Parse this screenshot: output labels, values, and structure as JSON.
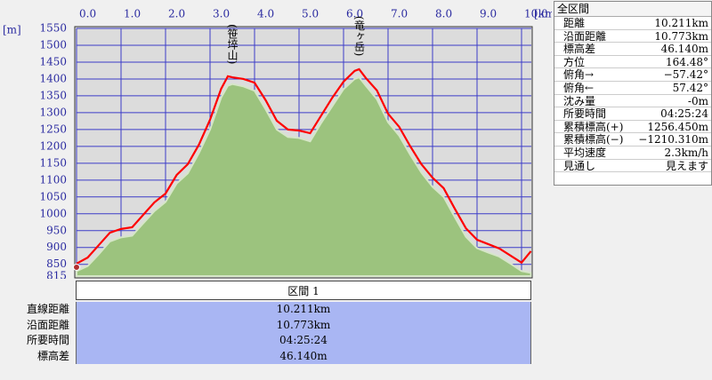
{
  "chart_data": {
    "type": "line",
    "x_unit": "[km]",
    "y_unit": "[m]",
    "annotations": [
      {
        "x": 3.5,
        "y": 1405,
        "text": "(笹埣山)"
      },
      {
        "x": 6.35,
        "y": 1429,
        "text": "(竜ヶ岳)"
      }
    ],
    "x": [
      0,
      0.25,
      0.5,
      0.75,
      1.0,
      1.25,
      1.5,
      1.75,
      2.0,
      2.25,
      2.5,
      2.75,
      3.0,
      3.25,
      3.4,
      3.5,
      3.75,
      4.0,
      4.25,
      4.5,
      4.75,
      5.0,
      5.25,
      5.5,
      5.75,
      6.0,
      6.25,
      6.35,
      6.5,
      6.75,
      7.0,
      7.25,
      7.5,
      7.75,
      8.0,
      8.25,
      8.5,
      8.75,
      9.0,
      9.25,
      9.5,
      9.75,
      10.0,
      10.211
    ],
    "series": [
      {
        "style": "area",
        "color": "#9cc37e",
        "values": [
          830,
          845,
          880,
          918,
          930,
          935,
          972,
          1008,
          1035,
          1090,
          1120,
          1180,
          1250,
          1345,
          1380,
          1385,
          1378,
          1365,
          1310,
          1250,
          1228,
          1225,
          1215,
          1270,
          1320,
          1370,
          1400,
          1405,
          1380,
          1340,
          1272,
          1232,
          1175,
          1122,
          1080,
          1050,
          990,
          932,
          898,
          885,
          873,
          852,
          830,
          825
        ]
      },
      {
        "style": "line",
        "color": "#ff0000",
        "values": [
          852,
          870,
          907,
          944,
          955,
          960,
          997,
          1034,
          1060,
          1115,
          1147,
          1205,
          1279,
          1371,
          1408,
          1405,
          1400,
          1389,
          1337,
          1276,
          1250,
          1247,
          1239,
          1292,
          1345,
          1392,
          1424,
          1429,
          1403,
          1366,
          1297,
          1258,
          1200,
          1147,
          1107,
          1076,
          1015,
          957,
          923,
          910,
          897,
          876,
          855,
          889
        ]
      }
    ],
    "xlim": [
      0,
      10.22
    ],
    "ylim": [
      815,
      1550
    ],
    "xticks": [
      {
        "value": 0,
        "label": "0.0"
      },
      {
        "value": 1,
        "label": "1.0"
      },
      {
        "value": 2,
        "label": "2.0"
      },
      {
        "value": 3,
        "label": "3.0"
      },
      {
        "value": 4,
        "label": "4.0"
      },
      {
        "value": 5,
        "label": "5.0"
      },
      {
        "value": 6,
        "label": "6.0"
      },
      {
        "value": 7,
        "label": "7.0"
      },
      {
        "value": 8,
        "label": "8.0"
      },
      {
        "value": 9,
        "label": "9.0"
      },
      {
        "value": 10,
        "label": "10.0"
      }
    ],
    "yticks": [
      815,
      850,
      900,
      950,
      1000,
      1050,
      1100,
      1150,
      1200,
      1250,
      1300,
      1350,
      1400,
      1450,
      1500,
      1550
    ],
    "grid": true
  },
  "stats_panel": {
    "title": "全区間",
    "rows": [
      [
        "距離",
        "10.211km"
      ],
      [
        "沿面距離",
        "10.773km"
      ],
      [
        "標高差",
        "46.140m"
      ],
      [
        "方位",
        "164.48°"
      ],
      [
        "俯角→",
        "−57.42°"
      ],
      [
        "俯角←",
        "57.42°"
      ],
      [
        "沈み量",
        "-0m"
      ],
      [
        "所要時間",
        "04:25:24"
      ],
      [
        "累積標高(+)",
        "1256.450m"
      ],
      [
        "累積標高(−)",
        "−1210.310m"
      ],
      [
        "平均速度",
        "2.3km/h"
      ],
      [
        "見通し",
        "見えます"
      ]
    ]
  },
  "section_table": {
    "header": "区間 1",
    "rows": [
      [
        "直線距離",
        "10.211km"
      ],
      [
        "沿面距離",
        "10.773km"
      ],
      [
        "所要時間",
        "04:25:24"
      ],
      [
        "標高差",
        "46.140m"
      ]
    ]
  }
}
